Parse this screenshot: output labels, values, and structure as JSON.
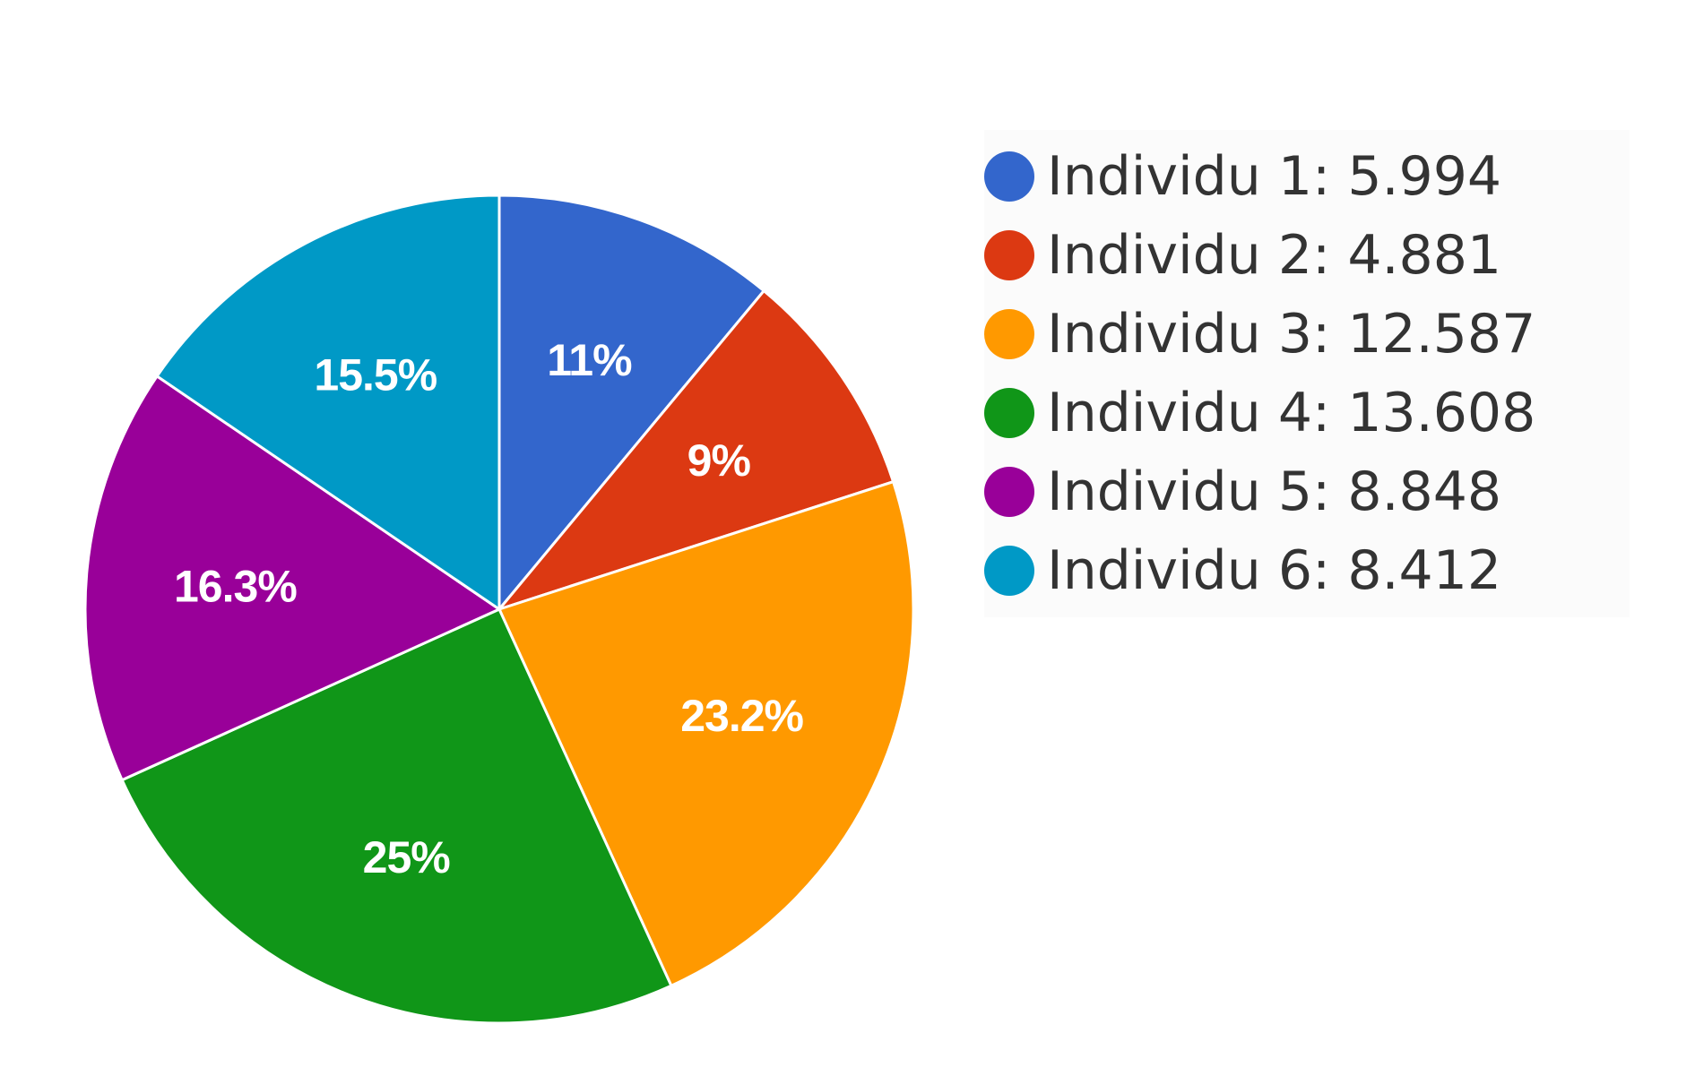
{
  "chart_data": {
    "type": "pie",
    "title": "",
    "legend_position": "right",
    "slices": [
      {
        "name": "Individu 1",
        "value": "5.994",
        "percent_label": "11%",
        "color": "#3366cc"
      },
      {
        "name": "Individu 2",
        "value": "4.881",
        "percent_label": "9%",
        "color": "#dc3912"
      },
      {
        "name": "Individu 3",
        "value": "12.587",
        "percent_label": "23.2%",
        "color": "#ff9900"
      },
      {
        "name": "Individu 4",
        "value": "13.608",
        "percent_label": "25%",
        "color": "#109618"
      },
      {
        "name": "Individu 5",
        "value": "8.848",
        "percent_label": "16.3%",
        "color": "#990099"
      },
      {
        "name": "Individu 6",
        "value": "8.412",
        "percent_label": "15.5%",
        "color": "#0099c6"
      }
    ]
  }
}
